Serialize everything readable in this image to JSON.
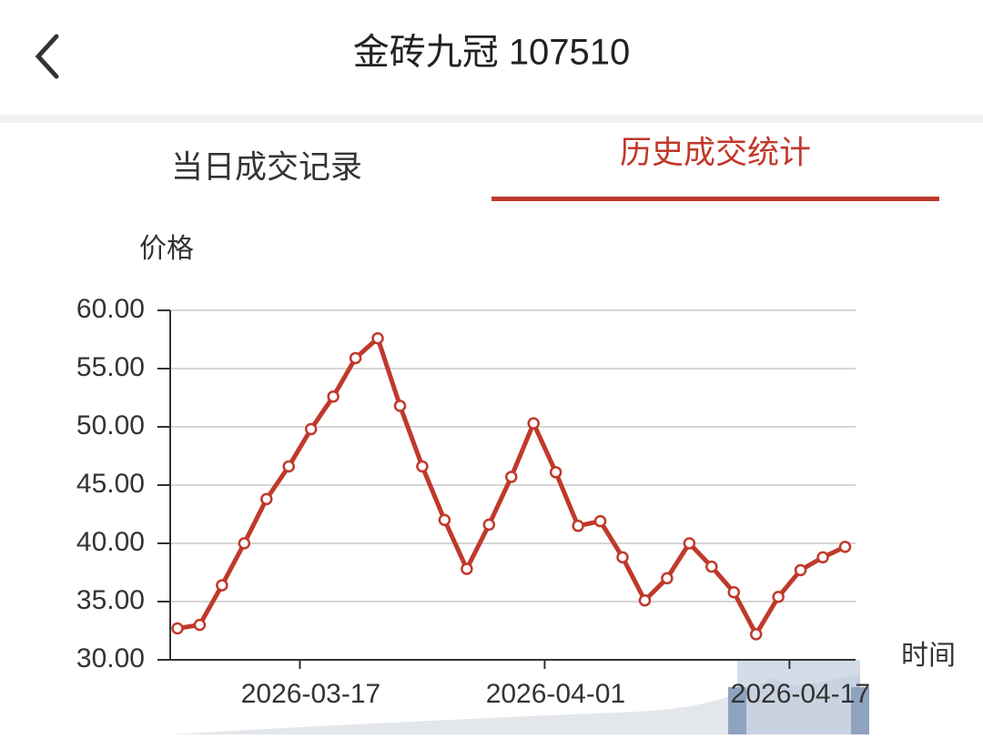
{
  "header": {
    "title": "金砖九冠 107510"
  },
  "tabs": [
    "当日成交记录",
    "历史成交统计"
  ],
  "chart_data": {
    "type": "line",
    "y_axis_label": "价格",
    "x_axis_label": "时间",
    "categories": [
      null,
      null,
      null,
      null,
      null,
      null,
      "2026-03-17",
      null,
      null,
      null,
      null,
      null,
      null,
      null,
      null,
      null,
      null,
      "2026-04-01",
      null,
      null,
      null,
      null,
      null,
      null,
      null,
      null,
      null,
      null,
      "2026-04-17",
      null,
      null
    ],
    "series": [
      {
        "name": "价格",
        "color": "#c0392b",
        "values": [
          32.7,
          33.0,
          36.4,
          40.0,
          43.8,
          46.6,
          49.8,
          52.6,
          55.9,
          57.6,
          51.8,
          46.6,
          42.0,
          37.8,
          41.6,
          45.7,
          50.3,
          46.1,
          41.5,
          41.9,
          38.8,
          35.1,
          37.0,
          40.0,
          38.0,
          35.8,
          32.2,
          35.4,
          37.7,
          38.8,
          39.7
        ]
      }
    ],
    "ylim": [
      30,
      60
    ],
    "yticks": [
      {
        "value": 30,
        "label": "30.00"
      },
      {
        "value": 35,
        "label": "35.00"
      },
      {
        "value": 40,
        "label": "40.00"
      },
      {
        "value": 45,
        "label": "45.00"
      },
      {
        "value": 50,
        "label": "50.00"
      },
      {
        "value": 55,
        "label": "55.00"
      },
      {
        "value": 60,
        "label": "60.00"
      }
    ],
    "grid": true
  }
}
